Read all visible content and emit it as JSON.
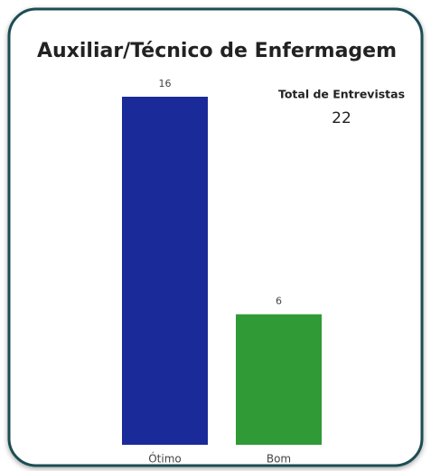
{
  "chart_data": {
    "type": "bar",
    "title": "Auxiliar/Técnico de Enfermagem",
    "categories": [
      "Ótimo",
      "Bom"
    ],
    "values": [
      16,
      6
    ],
    "colors": [
      "#1b2a99",
      "#2f9a36"
    ],
    "kpi": {
      "label": "Total de Entrevistas",
      "value": 22
    }
  }
}
